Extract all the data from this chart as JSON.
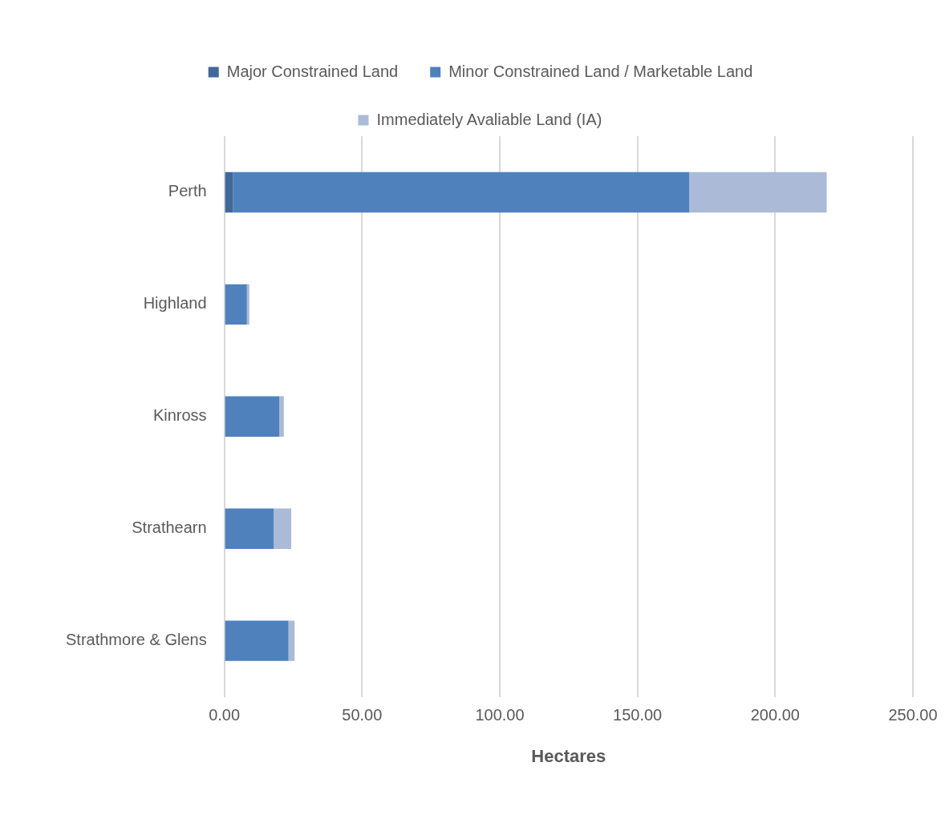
{
  "chart_data": {
    "type": "bar",
    "orientation": "horizontal",
    "stacked": true,
    "xlabel": "Hectares",
    "categories": [
      "Perth",
      "Highland",
      "Kinross",
      "Strathearn",
      "Strathmore & Glens"
    ],
    "series": [
      {
        "name": "Major Constrained Land",
        "color": "#41689a",
        "values": [
          3.2,
          0,
          0,
          0,
          0
        ]
      },
      {
        "name": "Minor Constrained Land / Marketable Land",
        "color": "#4f81bd",
        "values": [
          165.6,
          8.2,
          20.0,
          17.9,
          23.3
        ]
      },
      {
        "name": "Immediately Avaliable Land (IA)",
        "color": "#abbad6",
        "values": [
          49.9,
          0.9,
          1.6,
          6.4,
          2.2
        ]
      }
    ],
    "xlim": [
      0,
      250
    ],
    "xticks": [
      {
        "value": 0,
        "label": "0.00"
      },
      {
        "value": 50,
        "label": "50.00"
      },
      {
        "value": 100,
        "label": "100.00"
      },
      {
        "value": 150,
        "label": "150.00"
      },
      {
        "value": 200,
        "label": "200.00"
      },
      {
        "value": 250,
        "label": "250.00"
      }
    ],
    "grid": "x",
    "legend": "top"
  }
}
